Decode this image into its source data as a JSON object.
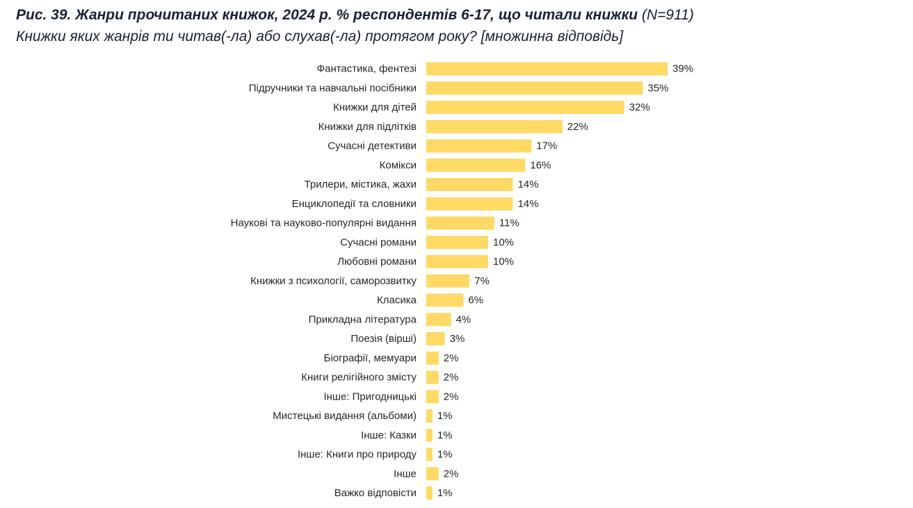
{
  "caption": {
    "title_bold": "Рис. 39. Жанри прочитаних книжок, 2024 р. % респондентів 6-17, що читали книжки",
    "title_n": "(N=911)",
    "question": "Книжки яких жанрів ти читав(-ла) або слухав(-ла) протягом року? [множинна відповідь]"
  },
  "colors": {
    "bar": "#FFD966",
    "label": "#262626"
  },
  "chart_data": {
    "type": "bar",
    "orientation": "horizontal",
    "value_unit": "%",
    "xlim": [
      0,
      40
    ],
    "grid": false,
    "legend": "none",
    "categories": [
      "Фантастика, фентезі",
      "Підручники та навчальні посібники",
      "Книжки для дітей",
      "Книжки для підлітків",
      "Сучасні детективи",
      "Комікси",
      "Трилери, містика, жахи",
      "Енциклопедії та словники",
      "Наукові та науково-популярні видання",
      "Сучасні романи",
      "Любовні романи",
      "Книжки з психології, саморозвитку",
      "Класика",
      "Прикладна література",
      "Поезія (вірші)",
      "Біографії, мемуари",
      "Книги релігійного змісту",
      "Інше: Пригодницькі",
      "Мистецькі видання (альбоми)",
      "Інше: Казки",
      "Інше: Книги про природу",
      "Інше",
      "Важко відповісти"
    ],
    "values": [
      39,
      35,
      32,
      22,
      17,
      16,
      14,
      14,
      11,
      10,
      10,
      7,
      6,
      4,
      3,
      2,
      2,
      2,
      1,
      1,
      1,
      2,
      1
    ]
  }
}
